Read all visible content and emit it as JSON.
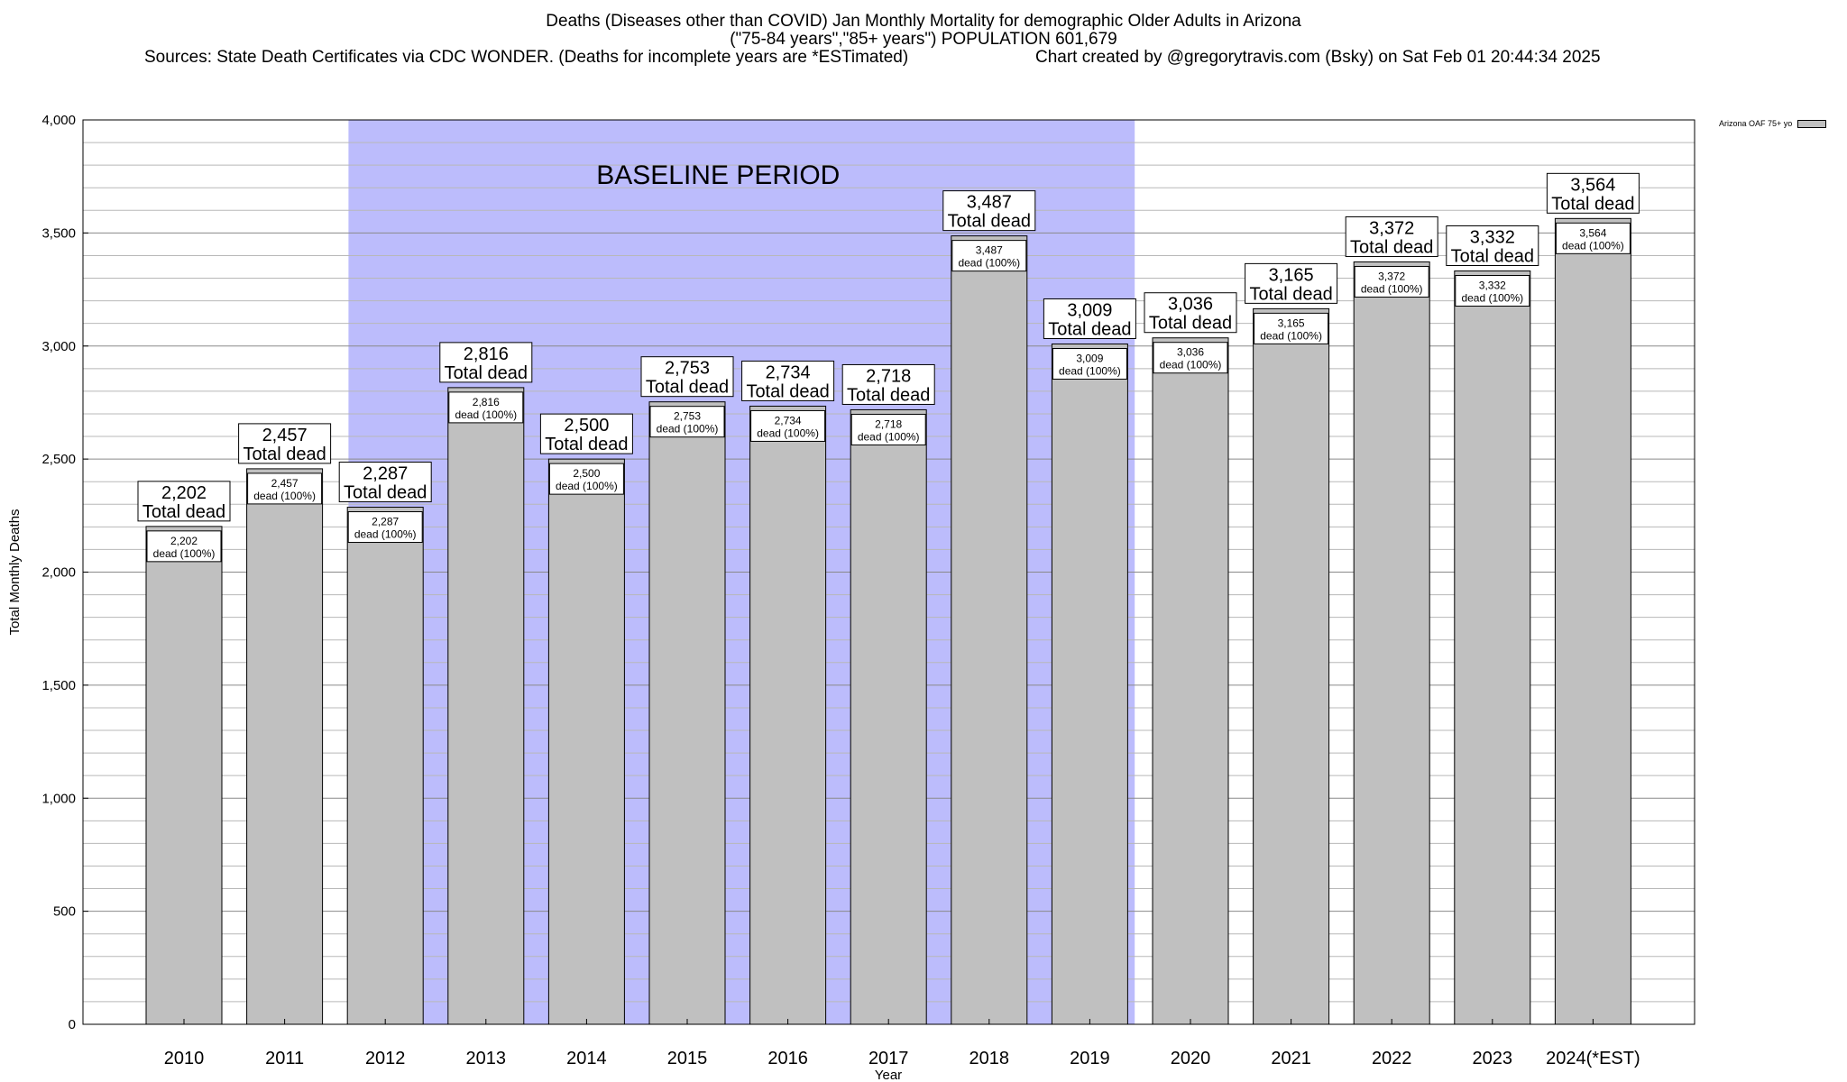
{
  "chart_data": {
    "type": "bar",
    "title_lines": [
      "Deaths (Diseases other than COVID) Jan Monthly Mortality for demographic Older Adults in Arizona",
      "(\"75-84 years\",\"85+ years\") POPULATION 601,679"
    ],
    "sources": "Sources: State Death Certificates via CDC WONDER. (Deaths for incomplete years are *ESTimated)",
    "credit": "Chart created by @gregorytravis.com (Bsky) on Sat Feb 01 20:44:34 2025",
    "xlabel": "Year",
    "ylabel": "Total Monthly Deaths",
    "ylim": [
      0,
      4000
    ],
    "yticks": [
      0,
      500,
      1000,
      1500,
      2000,
      2500,
      3000,
      3500,
      4000
    ],
    "ytick_labels": [
      "0",
      "500",
      "1,000",
      "1,500",
      "2,000",
      "2,500",
      "3,000",
      "3,500",
      "4,000"
    ],
    "grid": true,
    "categories": [
      "2010",
      "2011",
      "2012",
      "2013",
      "2014",
      "2015",
      "2016",
      "2017",
      "2018",
      "2019",
      "2020",
      "2021",
      "2022",
      "2023",
      "2024(*EST)"
    ],
    "series": [
      {
        "name": "Arizona OAF 75+ yo",
        "color": "#c0c0c0",
        "values": [
          2202,
          2457,
          2287,
          2816,
          2500,
          2753,
          2734,
          2718,
          3487,
          3009,
          3036,
          3165,
          3372,
          3332,
          3564
        ]
      }
    ],
    "value_labels": [
      "2,202",
      "2,457",
      "2,287",
      "2,816",
      "2,500",
      "2,753",
      "2,734",
      "2,718",
      "3,487",
      "3,009",
      "3,036",
      "3,165",
      "3,372",
      "3,332",
      "3,564"
    ],
    "total_label_suffix": "Total dead",
    "inner_label_suffix": "dead (100%)",
    "baseline": {
      "label": "BASELINE PERIOD",
      "from_category": "2012",
      "to_category": "2019",
      "color": "#bcbcfc"
    },
    "legend": {
      "label": "Arizona OAF 75+ yo",
      "position": "top-right"
    }
  }
}
